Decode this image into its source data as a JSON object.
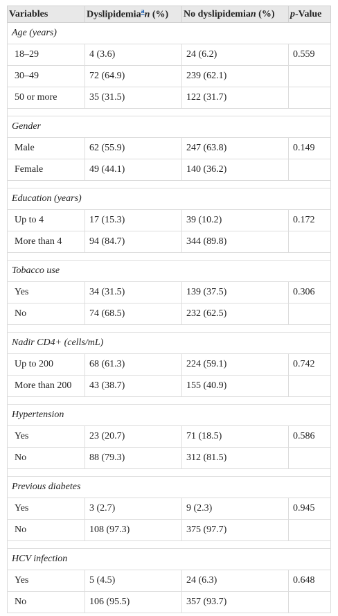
{
  "header": {
    "variables": "Variables",
    "dyslipidemia": {
      "label": "Dyslipidemia",
      "note": "a",
      "stat_var": "n",
      "stat": "(%)"
    },
    "no_dyslipidemia": {
      "label": "No dyslipidemia",
      "stat_var": "n",
      "stat": "(%)"
    },
    "p_value": {
      "var": "p",
      "label": "-Value"
    }
  },
  "sections": [
    {
      "title": "Age (years)",
      "p_value": "0.559",
      "rows": [
        [
          "18–29",
          "4 (3.6)",
          "24 (6.2)"
        ],
        [
          "30–49",
          "72 (64.9)",
          "239 (62.1)"
        ],
        [
          "50 or more",
          "35 (31.5)",
          "122 (31.7)"
        ]
      ]
    },
    {
      "title": "Gender",
      "p_value": "0.149",
      "rows": [
        [
          "Male",
          "62 (55.9)",
          "247 (63.8)"
        ],
        [
          "Female",
          "49 (44.1)",
          "140 (36.2)"
        ]
      ]
    },
    {
      "title": "Education (years)",
      "p_value": "0.172",
      "rows": [
        [
          "Up to 4",
          "17 (15.3)",
          "39 (10.2)"
        ],
        [
          "More than 4",
          "94 (84.7)",
          "344 (89.8)"
        ]
      ]
    },
    {
      "title": "Tobacco use",
      "p_value": "0.306",
      "rows": [
        [
          "Yes",
          "34 (31.5)",
          "139 (37.5)"
        ],
        [
          "No",
          "74 (68.5)",
          "232 (62.5)"
        ]
      ]
    },
    {
      "title": "Nadir CD4+ (cells/mL)",
      "p_value": "0.742",
      "rows": [
        [
          "Up to 200",
          "68 (61.3)",
          "224 (59.1)"
        ],
        [
          "More than 200",
          "43 (38.7)",
          "155 (40.9)"
        ]
      ]
    },
    {
      "title": "Hypertension",
      "p_value": "0.586",
      "rows": [
        [
          "Yes",
          "23 (20.7)",
          "71 (18.5)"
        ],
        [
          "No",
          "88 (79.3)",
          "312 (81.5)"
        ]
      ]
    },
    {
      "title": "Previous diabetes",
      "p_value": "0.945",
      "rows": [
        [
          "Yes",
          "3 (2.7)",
          "9 (2.3)"
        ],
        [
          "No",
          "108 (97.3)",
          "375 (97.7)"
        ]
      ]
    },
    {
      "title": "HCV infection",
      "p_value": "0.648",
      "rows": [
        [
          "Yes",
          "5 (4.5)",
          "24 (6.3)"
        ],
        [
          "No",
          "106 (95.5)",
          "357 (93.7)"
        ]
      ]
    }
  ]
}
